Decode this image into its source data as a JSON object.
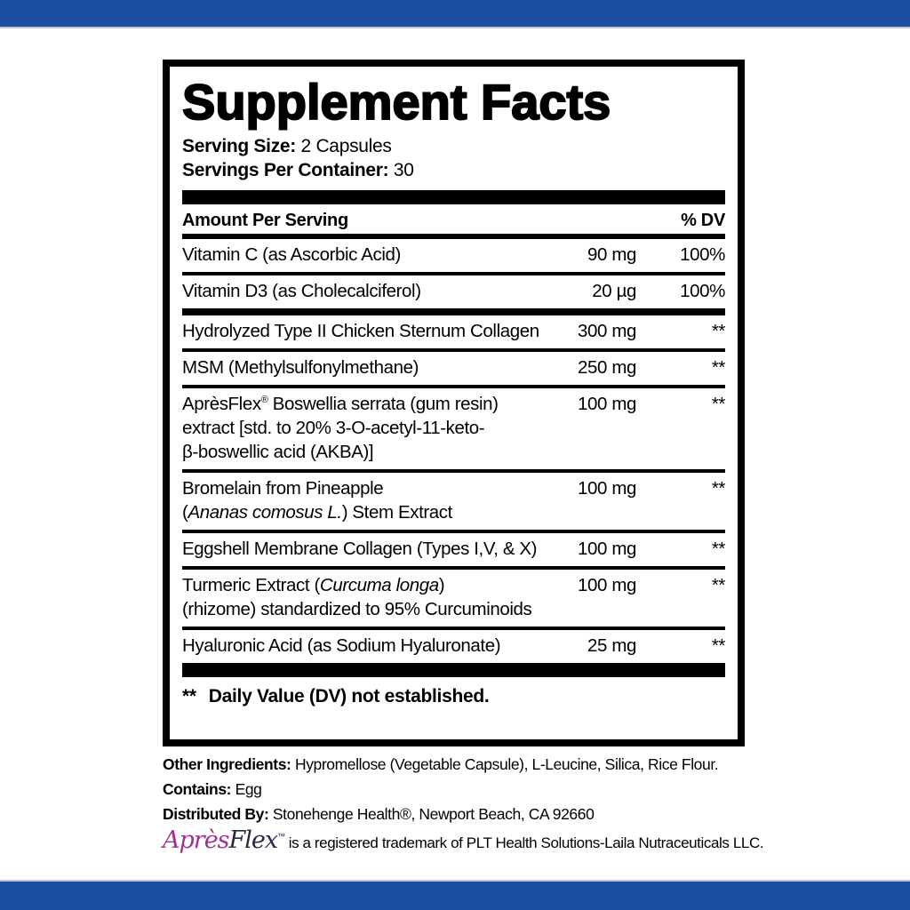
{
  "colors": {
    "banner_blue": "#1b4da1",
    "brand_magenta": "#a2338f",
    "brand_flex_dark": "#2c2745"
  },
  "panel": {
    "title": "Supplement Facts",
    "serving_size": {
      "label": "Serving Size:",
      "value": "2 Capsules"
    },
    "servings_per_container": {
      "label": "Servings Per Container:",
      "value": "30"
    },
    "columns": {
      "amount_header": "Amount Per Serving",
      "dv_header": "% DV"
    },
    "rows": [
      {
        "rule_above": "medium",
        "lines": [
          [
            {
              "t": "Vitamin C (as Ascorbic Acid)"
            }
          ]
        ],
        "amount": "90 mg",
        "dv": "100%"
      },
      {
        "rule_above": "thin",
        "lines": [
          [
            {
              "t": "Vitamin D3 (as Cholecalciferol)"
            }
          ]
        ],
        "amount": "20 µg",
        "dv": "100%"
      },
      {
        "rule_above": "heavy",
        "lines": [
          [
            {
              "t": "Hydrolyzed Type II Chicken Sternum Collagen"
            }
          ]
        ],
        "amount": "300 mg",
        "dv": "**"
      },
      {
        "rule_above": "thin",
        "lines": [
          [
            {
              "t": "MSM (Methylsulfonylmethane)"
            }
          ]
        ],
        "amount": "250 mg",
        "dv": "**"
      },
      {
        "rule_above": "thin",
        "lines": [
          [
            {
              "t": "AprèsFlex"
            },
            {
              "t": "®",
              "sup": true
            },
            {
              "t": " Boswellia serrata (gum resin)"
            }
          ],
          [
            {
              "t": "extract [std. to 20% 3-O-acetyl-11-keto-"
            }
          ],
          [
            {
              "t": "β-boswellic acid (AKBA)]"
            }
          ]
        ],
        "amount": "100 mg",
        "dv": "**"
      },
      {
        "rule_above": "thin",
        "lines": [
          [
            {
              "t": "Bromelain from Pineapple"
            }
          ],
          [
            {
              "t": "("
            },
            {
              "t": "Ananas comosus L.",
              "i": true
            },
            {
              "t": ") Stem Extract"
            }
          ]
        ],
        "amount": "100 mg",
        "dv": "**"
      },
      {
        "rule_above": "thin",
        "lines": [
          [
            {
              "t": "Eggshell Membrane Collagen (Types I,V, & X)"
            }
          ]
        ],
        "amount": "100 mg",
        "dv": "**"
      },
      {
        "rule_above": "thin",
        "lines": [
          [
            {
              "t": "Turmeric Extract ("
            },
            {
              "t": "Curcuma longa",
              "i": true
            },
            {
              "t": ")"
            }
          ],
          [
            {
              "t": "(rhizome) standardized to 95% Curcuminoids"
            }
          ]
        ],
        "amount": "100 mg",
        "dv": "**"
      },
      {
        "rule_above": "thin",
        "lines": [
          [
            {
              "t": "Hyaluronic Acid (as Sodium Hyaluronate)"
            }
          ]
        ],
        "amount": "25 mg",
        "dv": "**"
      }
    ],
    "footnote": {
      "marker": "**",
      "text": "Daily Value (DV) not established."
    }
  },
  "footer": {
    "other_ingredients": {
      "label": "Other Ingredients:",
      "value": "Hypromellose (Vegetable Capsule), L-Leucine, Silica, Rice Flour."
    },
    "contains": {
      "label": "Contains:",
      "value": "Egg"
    },
    "distributed_by": {
      "label": "Distributed By:",
      "value": "Stonehenge Health®, Newport Beach, CA 92660"
    },
    "trademark": {
      "brand_part1": "Après",
      "brand_part2": "Flex",
      "tm": "™",
      "text": "is a registered trademark of PLT Health Solutions-Laila Nutraceuticals LLC."
    }
  }
}
